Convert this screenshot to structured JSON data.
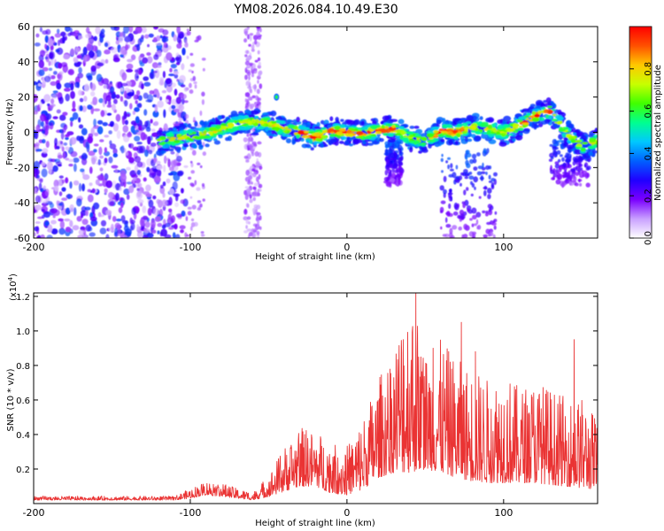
{
  "title": "YM08.2026.084.10.49.E30",
  "chart_data": [
    {
      "type": "heatmap",
      "xlabel": "Height of straight line (km)",
      "ylabel": "Frequency (Hz)",
      "xlim": [
        -200,
        160
      ],
      "ylim": [
        -60,
        60
      ],
      "x_ticks": [
        -200,
        -100,
        0,
        100
      ],
      "y_ticks": [
        -60,
        -40,
        -20,
        0,
        20,
        40,
        60
      ],
      "colorbar": {
        "label": "Normalized spectral amplitude",
        "range": [
          0.0,
          1.0
        ],
        "ticks": [
          0.0,
          0.2,
          0.4,
          0.6,
          0.8
        ],
        "tick_labels": [
          "0.0",
          "0.2",
          "0.4",
          "0.6",
          "0.8"
        ],
        "colormap": [
          "#ffffff",
          "#c9a0ff",
          "#7a00ff",
          "#2000ff",
          "#0060ff",
          "#00c8ff",
          "#00ff90",
          "#40ff00",
          "#c8ff00",
          "#ffc800",
          "#ff5000",
          "#ff0000"
        ]
      },
      "ridge": {
        "x": [
          -120,
          -105,
          -90,
          -80,
          -70,
          -60,
          -50,
          -40,
          -30,
          -20,
          -10,
          0,
          10,
          20,
          30,
          40,
          50,
          60,
          70,
          80,
          90,
          100,
          110,
          120,
          130,
          140,
          150,
          160
        ],
        "y": [
          -5,
          -3,
          -1,
          2,
          5,
          6,
          5,
          2,
          0,
          -3,
          1,
          0,
          -1,
          1,
          2,
          -3,
          -5,
          1,
          0,
          3,
          2,
          0,
          4,
          9,
          12,
          0,
          -8,
          -5
        ]
      },
      "noise_band": {
        "x_range": [
          -200,
          -103
        ],
        "amplitude_range": [
          0.05,
          0.35
        ]
      },
      "stripe": {
        "x_range": [
          -65,
          -55
        ]
      },
      "tail_regions": [
        {
          "x_range": [
            25,
            35
          ],
          "y_range": [
            -30,
            -5
          ]
        },
        {
          "x_range": [
            60,
            95
          ],
          "y_range": [
            -60,
            -10
          ]
        },
        {
          "x_range": [
            130,
            155
          ],
          "y_range": [
            -30,
            -5
          ]
        }
      ]
    },
    {
      "type": "line",
      "xlabel": "Height of straight line (km)",
      "ylabel": "SNR (10 * v/v)",
      "scale_label": "(x10",
      "scale_exponent": "4",
      "scale_close": ")",
      "xlim": [
        -200,
        160
      ],
      "ylim": [
        0,
        1.22
      ],
      "x_ticks": [
        -200,
        -100,
        0,
        100
      ],
      "y_ticks": [
        0.2,
        0.4,
        0.6,
        0.8,
        1.0,
        1.2
      ],
      "y_tick_labels": [
        "0.2",
        "0.4",
        "0.6",
        "0.8",
        "1.0",
        "1.2"
      ],
      "color": "#ea3333",
      "envelope": {
        "x": [
          -200,
          -110,
          -100,
          -90,
          -80,
          -70,
          -60,
          -50,
          -40,
          -30,
          -20,
          -10,
          0,
          10,
          20,
          30,
          40,
          50,
          60,
          70,
          80,
          90,
          100,
          110,
          120,
          130,
          140,
          150,
          160
        ],
        "base": [
          0.02,
          0.02,
          0.03,
          0.05,
          0.04,
          0.03,
          0.02,
          0.04,
          0.07,
          0.1,
          0.1,
          0.06,
          0.05,
          0.08,
          0.15,
          0.18,
          0.18,
          0.2,
          0.18,
          0.15,
          0.13,
          0.12,
          0.12,
          0.12,
          0.12,
          0.11,
          0.1,
          0.09,
          0.08
        ],
        "peak": [
          0.04,
          0.04,
          0.08,
          0.12,
          0.11,
          0.08,
          0.06,
          0.15,
          0.3,
          0.4,
          0.38,
          0.33,
          0.3,
          0.45,
          0.65,
          0.85,
          1.15,
          0.8,
          0.85,
          0.75,
          0.7,
          0.65,
          0.7,
          0.6,
          0.65,
          0.6,
          0.55,
          0.55,
          0.45
        ]
      },
      "spikes": [
        {
          "x": 44,
          "y": 1.22
        },
        {
          "x": 73,
          "y": 1.05
        },
        {
          "x": 36,
          "y": 0.95
        },
        {
          "x": 145,
          "y": 0.95
        },
        {
          "x": 55,
          "y": 0.9
        },
        {
          "x": 82,
          "y": 0.88
        },
        {
          "x": -27,
          "y": 0.4
        }
      ]
    }
  ]
}
